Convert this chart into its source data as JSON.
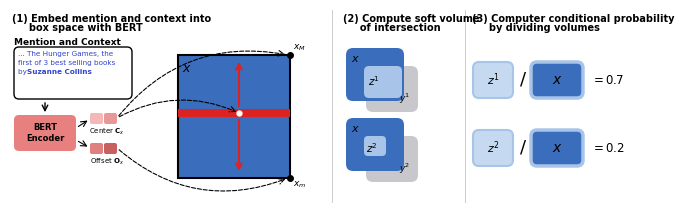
{
  "bg_color": "#ffffff",
  "blue_dark": "#3a6ebd",
  "blue_light": "#a8c4e8",
  "blue_lighter": "#c5d9f0",
  "gray_box": "#c8c8cc",
  "red_color": "#dd2222",
  "bert_fill": "#e88080",
  "center_fill1": "#f5b8b8",
  "center_fill2": "#e89898",
  "offset_fill1": "#e08080",
  "offset_fill2": "#c86060",
  "text_blue": "#3344cc",
  "text_blue_bold": "#2233bb",
  "black": "#000000",
  "sec1_title_l1": "(1) Embed mention and context into",
  "sec1_title_l2": "     box space with BERT",
  "sec2_title_l1": "(2) Compute soft volume",
  "sec2_title_l2": "     of intersection",
  "sec3_title_l1": "(3) Computer conditional probability",
  "sec3_title_l2": "     by dividing volumes",
  "mention_label": "Mention and Context",
  "bert_label": "BERT\nEncoder",
  "center_sub": "Center C",
  "offset_sub": "Offset O"
}
